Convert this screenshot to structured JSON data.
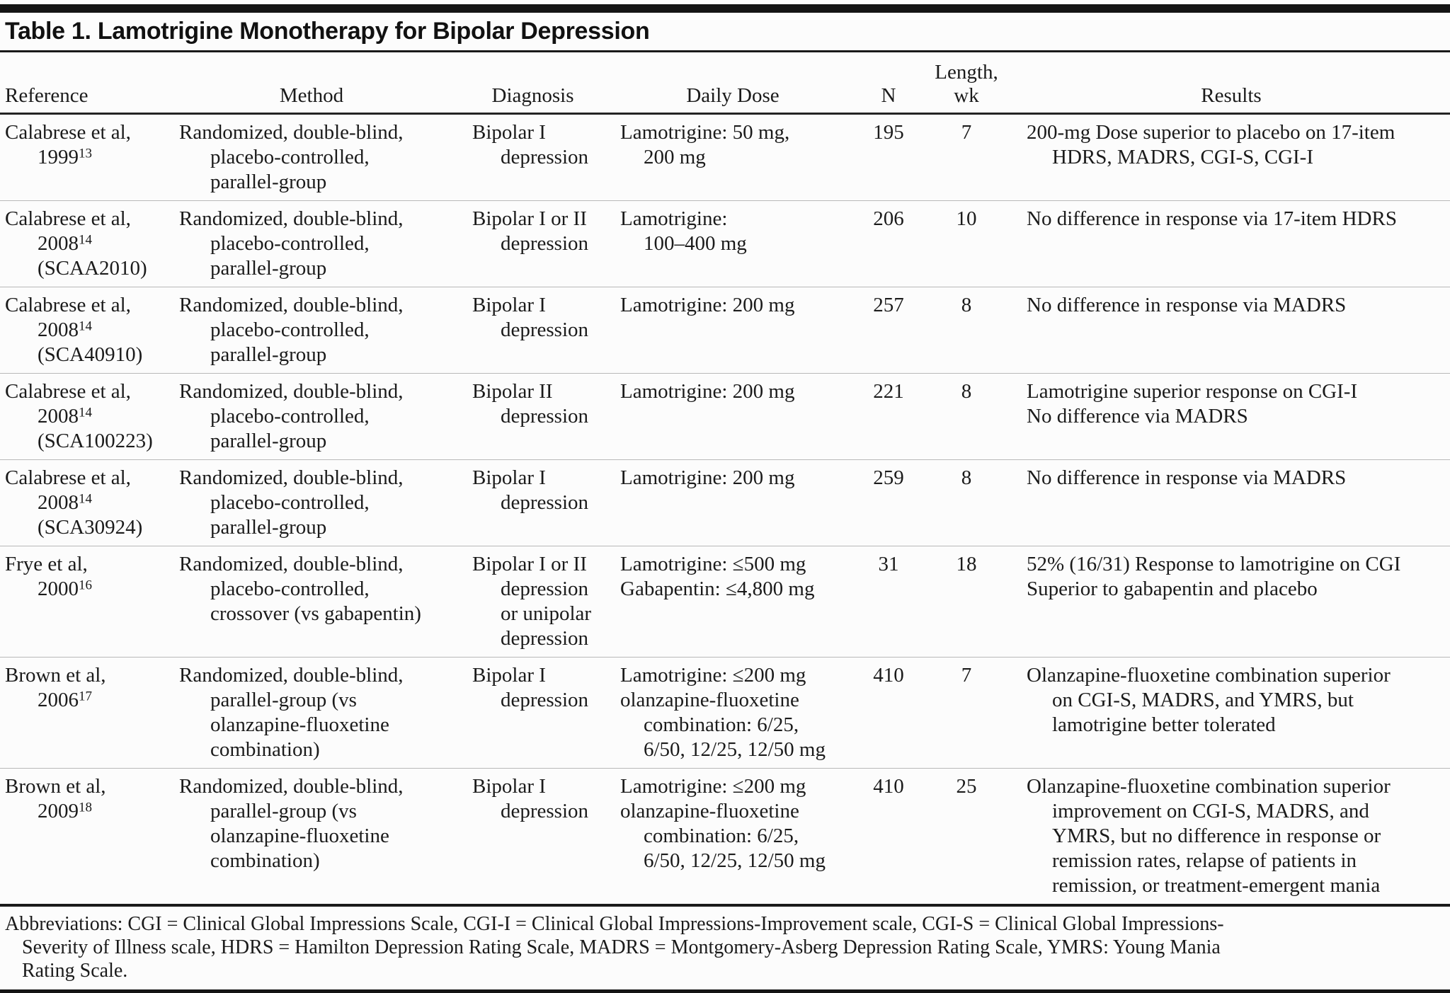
{
  "table": {
    "title": "Table 1. Lamotrigine Monotherapy for Bipolar Depression",
    "headers": {
      "reference": "Reference",
      "method": "Method",
      "diagnosis": "Diagnosis",
      "daily_dose": "Daily Dose",
      "n": "N",
      "length_line1": "Length,",
      "length_line2": "wk",
      "results": "Results"
    },
    "rows": [
      {
        "reference": [
          [
            "Calabrese et al,",
            0
          ],
          [
            "1999^13",
            1
          ]
        ],
        "method": [
          [
            "Randomized, double-blind,",
            0
          ],
          [
            "placebo-controlled,",
            1
          ],
          [
            "parallel-group",
            1
          ]
        ],
        "diagnosis": [
          [
            "Bipolar I",
            0
          ],
          [
            "depression",
            1
          ]
        ],
        "daily_dose": [
          [
            "Lamotrigine: 50 mg,",
            0
          ],
          [
            "200 mg",
            1
          ]
        ],
        "n": "195",
        "length_wk": "7",
        "results": [
          [
            "200-mg Dose superior to placebo on 17-item",
            0
          ],
          [
            "HDRS, MADRS, CGI-S, CGI-I",
            1
          ]
        ]
      },
      {
        "reference": [
          [
            "Calabrese et al,",
            0
          ],
          [
            "2008^14",
            1
          ],
          [
            "(SCAA2010)",
            1
          ]
        ],
        "method": [
          [
            "Randomized, double-blind,",
            0
          ],
          [
            "placebo-controlled,",
            1
          ],
          [
            "parallel-group",
            1
          ]
        ],
        "diagnosis": [
          [
            "Bipolar I or II",
            0
          ],
          [
            "depression",
            1
          ]
        ],
        "daily_dose": [
          [
            "Lamotrigine:",
            0
          ],
          [
            "100–400 mg",
            1
          ]
        ],
        "n": "206",
        "length_wk": "10",
        "results": [
          [
            "No difference in response via 17-item HDRS",
            0
          ]
        ]
      },
      {
        "reference": [
          [
            "Calabrese et al,",
            0
          ],
          [
            "2008^14",
            1
          ],
          [
            "(SCA40910)",
            1
          ]
        ],
        "method": [
          [
            "Randomized, double-blind,",
            0
          ],
          [
            "placebo-controlled,",
            1
          ],
          [
            "parallel-group",
            1
          ]
        ],
        "diagnosis": [
          [
            "Bipolar I",
            0
          ],
          [
            "depression",
            1
          ]
        ],
        "daily_dose": [
          [
            "Lamotrigine: 200 mg",
            0
          ]
        ],
        "n": "257",
        "length_wk": "8",
        "results": [
          [
            "No difference in response via MADRS",
            0
          ]
        ]
      },
      {
        "reference": [
          [
            "Calabrese et al,",
            0
          ],
          [
            "2008^14",
            1
          ],
          [
            "(SCA100223)",
            1
          ]
        ],
        "method": [
          [
            "Randomized, double-blind,",
            0
          ],
          [
            "placebo-controlled,",
            1
          ],
          [
            "parallel-group",
            1
          ]
        ],
        "diagnosis": [
          [
            "Bipolar II",
            0
          ],
          [
            "depression",
            1
          ]
        ],
        "daily_dose": [
          [
            "Lamotrigine: 200 mg",
            0
          ]
        ],
        "n": "221",
        "length_wk": "8",
        "results": [
          [
            "Lamotrigine superior response on CGI-I",
            0
          ],
          [
            "No difference via MADRS",
            0
          ]
        ]
      },
      {
        "reference": [
          [
            "Calabrese et al,",
            0
          ],
          [
            "2008^14",
            1
          ],
          [
            "(SCA30924)",
            1
          ]
        ],
        "method": [
          [
            "Randomized, double-blind,",
            0
          ],
          [
            "placebo-controlled,",
            1
          ],
          [
            "parallel-group",
            1
          ]
        ],
        "diagnosis": [
          [
            "Bipolar I",
            0
          ],
          [
            "depression",
            1
          ]
        ],
        "daily_dose": [
          [
            "Lamotrigine: 200 mg",
            0
          ]
        ],
        "n": "259",
        "length_wk": "8",
        "results": [
          [
            "No difference in response via MADRS",
            0
          ]
        ]
      },
      {
        "reference": [
          [
            "Frye et al,",
            0
          ],
          [
            "2000^16",
            1
          ]
        ],
        "method": [
          [
            "Randomized, double-blind,",
            0
          ],
          [
            "placebo-controlled,",
            1
          ],
          [
            "crossover (vs gabapentin)",
            1
          ]
        ],
        "diagnosis": [
          [
            "Bipolar I or II",
            0
          ],
          [
            "depression",
            1
          ],
          [
            "or unipolar",
            1
          ],
          [
            "depression",
            1
          ]
        ],
        "daily_dose": [
          [
            "Lamotrigine: ≤500 mg",
            0
          ],
          [
            "Gabapentin: ≤4,800 mg",
            0
          ]
        ],
        "n": "31",
        "length_wk": "18",
        "results": [
          [
            "52% (16/31) Response to lamotrigine on CGI",
            0
          ],
          [
            "Superior to gabapentin and placebo",
            0
          ]
        ]
      },
      {
        "reference": [
          [
            "Brown et al,",
            0
          ],
          [
            "2006^17",
            1
          ]
        ],
        "method": [
          [
            "Randomized, double-blind,",
            0
          ],
          [
            "parallel-group (vs",
            1
          ],
          [
            "olanzapine-fluoxetine",
            1
          ],
          [
            "combination)",
            1
          ]
        ],
        "diagnosis": [
          [
            "Bipolar I",
            0
          ],
          [
            "depression",
            1
          ]
        ],
        "daily_dose": [
          [
            "Lamotrigine: ≤200 mg",
            0
          ],
          [
            "olanzapine-fluoxetine",
            0
          ],
          [
            "combination: 6/25,",
            1
          ],
          [
            "6/50, 12/25, 12/50 mg",
            1
          ]
        ],
        "n": "410",
        "length_wk": "7",
        "results": [
          [
            "Olanzapine-fluoxetine combination superior",
            0
          ],
          [
            "on CGI-S, MADRS, and YMRS, but",
            1
          ],
          [
            "lamotrigine better tolerated",
            1
          ]
        ]
      },
      {
        "reference": [
          [
            "Brown et al,",
            0
          ],
          [
            "2009^18",
            1
          ]
        ],
        "method": [
          [
            "Randomized, double-blind,",
            0
          ],
          [
            "parallel-group (vs",
            1
          ],
          [
            "olanzapine-fluoxetine",
            1
          ],
          [
            "combination)",
            1
          ]
        ],
        "diagnosis": [
          [
            "Bipolar I",
            0
          ],
          [
            "depression",
            1
          ]
        ],
        "daily_dose": [
          [
            "Lamotrigine: ≤200 mg",
            0
          ],
          [
            "olanzapine-fluoxetine",
            0
          ],
          [
            "combination: 6/25,",
            1
          ],
          [
            "6/50, 12/25, 12/50 mg",
            1
          ]
        ],
        "n": "410",
        "length_wk": "25",
        "results": [
          [
            "Olanzapine-fluoxetine combination superior",
            0
          ],
          [
            "improvement on CGI-S, MADRS, and",
            1
          ],
          [
            "YMRS, but no difference in response or",
            1
          ],
          [
            "remission rates, relapse of patients in",
            1
          ],
          [
            "remission, or treatment-emergent mania",
            1
          ]
        ]
      }
    ]
  },
  "footnote": {
    "lines": [
      "Abbreviations: CGI = Clinical Global Impressions Scale, CGI-I = Clinical Global Impressions-Improvement scale, CGI-S = Clinical Global Impressions-",
      "Severity of Illness scale, HDRS = Hamilton Depression Rating Scale, MADRS = Montgomery-Asberg Depression Rating Scale, YMRS: Young Mania",
      "Rating Scale."
    ]
  },
  "colors": {
    "text": "#1b1b1b",
    "heavy_rule": "#141414",
    "hairline": "#b9b9b9",
    "background": "#fcfcfc"
  }
}
